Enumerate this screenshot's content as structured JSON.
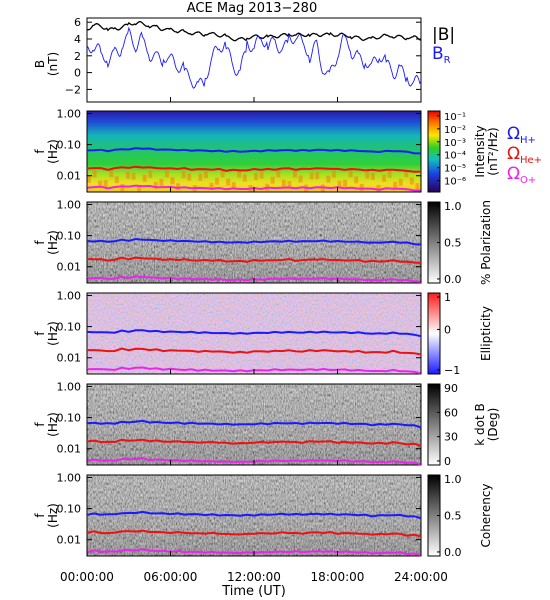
{
  "chart_data": [
    {
      "type": "line",
      "title": "ACE Mag 2013−280",
      "ylabel": "B",
      "yunit": "(nT)",
      "ylim": [
        -3.5,
        6.5
      ],
      "yticks": [
        "6",
        "4",
        "2",
        "0",
        "−2"
      ],
      "ytick_values": [
        6,
        4,
        2,
        0,
        -2
      ],
      "series": [
        {
          "name": "|B|",
          "color": "#000000",
          "values": [
            5.0,
            5.6,
            5.5,
            5.2,
            5.3,
            5.4,
            5.7,
            5.8,
            5.8,
            5.6,
            5.5,
            5.2,
            5.0,
            4.9,
            4.8,
            4.8,
            4.7,
            4.6,
            4.5,
            4.4,
            4.3,
            4.1,
            4.0,
            4.1,
            4.2,
            4.2,
            4.3,
            4.4,
            4.5,
            4.5,
            4.4,
            4.4,
            4.5,
            4.6,
            4.6,
            4.5,
            4.4,
            4.4,
            4.3,
            4.2,
            4.1,
            4.0,
            4.2,
            4.3,
            4.4,
            4.3,
            4.2,
            4.1,
            4.0
          ]
        },
        {
          "name": "B",
          "sub": "R",
          "color": "#1a1aff",
          "values": [
            2.2,
            3.0,
            2.0,
            1.8,
            2.5,
            3.2,
            4.2,
            3.0,
            3.8,
            2.5,
            2.0,
            1.8,
            1.2,
            0.6,
            0.2,
            -0.5,
            -1.3,
            -0.8,
            1.5,
            2.8,
            3.2,
            1.0,
            0.5,
            3.2,
            2.8,
            3.6,
            3.5,
            3.8,
            3.2,
            3.5,
            4.2,
            3.0,
            2.2,
            3.5,
            0.5,
            -0.5,
            2.0,
            3.8,
            2.8,
            2.0,
            1.5,
            0.5,
            1.8,
            1.0,
            0.2,
            0.8,
            -0.5,
            -1.5,
            -1.2
          ]
        }
      ],
      "legend": "right"
    },
    {
      "type": "heatmap",
      "ylabel": "f",
      "yunit": "(Hz)",
      "yticks": [
        "1.00",
        "0.10",
        "0.01"
      ],
      "colorbar": {
        "label": "Intensity",
        "unit": "(nT²/Hz)",
        "ticks": [
          "10⁻¹",
          "10⁻²",
          "10⁻³",
          "10⁻⁴",
          "10⁻⁵",
          "10⁻⁶"
        ],
        "tick_values": [
          -1,
          -2,
          -3,
          -4,
          -5,
          -6
        ],
        "scale": "rainbow"
      },
      "legend_entries": [
        {
          "symbol": "Ω",
          "sub": "H+",
          "color": "#1a1aff"
        },
        {
          "symbol": "Ω",
          "sub": "He+",
          "color": "#ee1111"
        },
        {
          "symbol": "Ω",
          "sub": "O+",
          "color": "#ee22ee"
        }
      ]
    },
    {
      "type": "heatmap",
      "ylabel": "f",
      "yunit": "(Hz)",
      "yticks": [
        "1.00",
        "0.10",
        "0.01"
      ],
      "colorbar": {
        "label": "% Polarization",
        "ticks": [
          "1.0",
          "0.5",
          "0.0"
        ],
        "tick_values": [
          1.0,
          0.5,
          0.0
        ],
        "scale": "gray"
      }
    },
    {
      "type": "heatmap",
      "ylabel": "f",
      "yunit": "(Hz)",
      "yticks": [
        "1.00",
        "0.10",
        "0.01"
      ],
      "colorbar": {
        "label": "Ellipticity",
        "ticks": [
          "1",
          "0",
          "−1"
        ],
        "tick_values": [
          1,
          0,
          -1
        ],
        "scale": "bwr"
      }
    },
    {
      "type": "heatmap",
      "ylabel": "f",
      "yunit": "(Hz)",
      "yticks": [
        "1.00",
        "0.10",
        "0.01"
      ],
      "colorbar": {
        "label": "k dot B",
        "unit": "(Deg)",
        "ticks": [
          "90",
          "60",
          "30",
          "0"
        ],
        "tick_values": [
          90,
          60,
          30,
          0
        ],
        "scale": "gray"
      }
    },
    {
      "type": "heatmap",
      "ylabel": "f",
      "yunit": "(Hz)",
      "yticks": [
        "1.00",
        "0.10",
        "0.01"
      ],
      "colorbar": {
        "label": "Coherency",
        "ticks": [
          "1.0",
          "0.5",
          "0.0"
        ],
        "tick_values": [
          1.0,
          0.5,
          0.0
        ],
        "scale": "gray"
      }
    }
  ],
  "gyrofrequency_lines": {
    "H+": [
      0.065,
      0.067,
      0.066,
      0.064,
      0.066,
      0.072,
      0.07,
      0.075,
      0.076,
      0.072,
      0.07,
      0.069,
      0.068,
      0.068,
      0.066,
      0.066,
      0.065,
      0.064,
      0.063,
      0.062,
      0.061,
      0.061,
      0.06,
      0.061,
      0.062,
      0.063,
      0.064,
      0.065,
      0.066,
      0.066,
      0.065,
      0.065,
      0.066,
      0.067,
      0.067,
      0.066,
      0.065,
      0.065,
      0.064,
      0.063,
      0.062,
      0.058,
      0.06,
      0.061,
      0.062,
      0.061,
      0.058,
      0.055,
      0.05
    ],
    "He+": [
      0.017,
      0.018,
      0.017,
      0.016,
      0.017,
      0.019,
      0.018,
      0.019,
      0.019,
      0.018,
      0.018,
      0.017,
      0.017,
      0.017,
      0.017,
      0.016,
      0.016,
      0.016,
      0.016,
      0.016,
      0.015,
      0.015,
      0.015,
      0.015,
      0.016,
      0.016,
      0.016,
      0.016,
      0.017,
      0.017,
      0.016,
      0.016,
      0.017,
      0.017,
      0.017,
      0.017,
      0.016,
      0.016,
      0.016,
      0.016,
      0.015,
      0.015,
      0.015,
      0.015,
      0.016,
      0.015,
      0.014,
      0.014,
      0.013
    ],
    "O+": [
      0.0041,
      0.0044,
      0.0043,
      0.0041,
      0.0042,
      0.0046,
      0.0045,
      0.0047,
      0.0048,
      0.0045,
      0.0044,
      0.0043,
      0.0043,
      0.0042,
      0.0041,
      0.0041,
      0.004,
      0.004,
      0.0039,
      0.0039,
      0.0038,
      0.0038,
      0.0038,
      0.0038,
      0.0039,
      0.0039,
      0.004,
      0.0041,
      0.0041,
      0.0041,
      0.0041,
      0.0041,
      0.0041,
      0.0042,
      0.0042,
      0.0041,
      0.0041,
      0.0041,
      0.004,
      0.0039,
      0.0039,
      0.0037,
      0.0037,
      0.0038,
      0.0039,
      0.0038,
      0.0036,
      0.0035,
      0.0032
    ]
  },
  "x_axis": {
    "label": "Time (UT)",
    "ticks": [
      "00:00:00",
      "06:00:00",
      "12:00:00",
      "18:00:00",
      "24:00:00"
    ],
    "tick_hours": [
      0,
      6,
      12,
      18,
      24
    ],
    "xlim_hours": [
      0,
      24
    ]
  }
}
